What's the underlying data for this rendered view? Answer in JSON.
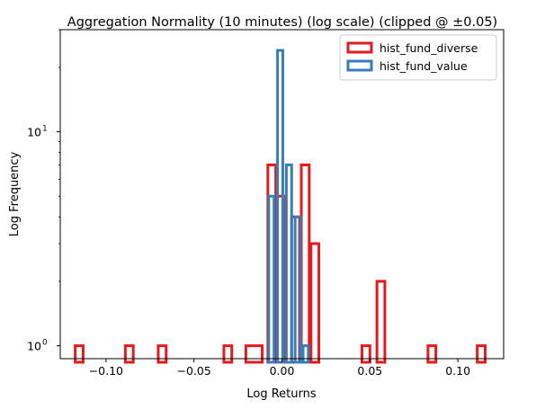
{
  "chart_data": {
    "type": "bar",
    "title": "Aggregation Normality (10 minutes) (log scale) (clipped @ ±0.05)",
    "xlabel": "Log Returns",
    "ylabel": "Log Frequency",
    "xlim": [
      -0.126,
      0.126
    ],
    "ylim": [
      0.87,
      30
    ],
    "yscale": "log",
    "grid": false,
    "legend_position": "top-right",
    "x_ticks": [
      {
        "value": -0.1,
        "label": "−0.10"
      },
      {
        "value": -0.05,
        "label": "−0.05"
      },
      {
        "value": 0.0,
        "label": "0.00"
      },
      {
        "value": 0.05,
        "label": "0.05"
      },
      {
        "value": 0.1,
        "label": "0.10"
      }
    ],
    "y_ticks": [
      {
        "value": 1,
        "label": "10",
        "exponent": "0"
      },
      {
        "value": 10,
        "label": "10",
        "exponent": "1"
      }
    ],
    "series": [
      {
        "name": "hist_fund_diverse",
        "color": "#e41a1c",
        "bins": [
          {
            "x0": -0.1175,
            "x1": -0.113,
            "value": 1
          },
          {
            "x0": -0.089,
            "x1": -0.0845,
            "value": 1
          },
          {
            "x0": -0.0703,
            "x1": -0.0658,
            "value": 1
          },
          {
            "x0": -0.033,
            "x1": -0.0285,
            "value": 1
          },
          {
            "x0": -0.0205,
            "x1": -0.0112,
            "value": 1
          },
          {
            "x0": -0.008,
            "x1": -0.0035,
            "value": 7
          },
          {
            "x0": -0.0035,
            "x1": 0.001,
            "value": 5
          },
          {
            "x0": 0.0055,
            "x1": 0.01,
            "value": 4
          },
          {
            "x0": 0.011,
            "x1": 0.0155,
            "value": 7
          },
          {
            "x0": 0.0165,
            "x1": 0.021,
            "value": 3
          },
          {
            "x0": 0.0455,
            "x1": 0.05,
            "value": 1
          },
          {
            "x0": 0.054,
            "x1": 0.0585,
            "value": 2
          },
          {
            "x0": 0.083,
            "x1": 0.0875,
            "value": 1
          },
          {
            "x0": 0.111,
            "x1": 0.1155,
            "value": 1
          }
        ]
      },
      {
        "name": "hist_fund_value",
        "color": "#377eb8",
        "bins": [
          {
            "x0": -0.0075,
            "x1": -0.0045,
            "value": 5
          },
          {
            "x0": -0.0025,
            "x1": 0.0005,
            "value": 24
          },
          {
            "x0": 0.0025,
            "x1": 0.0055,
            "value": 7
          },
          {
            "x0": 0.0075,
            "x1": 0.0105,
            "value": 4
          },
          {
            "x0": 0.012,
            "x1": 0.015,
            "value": 1
          }
        ]
      }
    ]
  }
}
